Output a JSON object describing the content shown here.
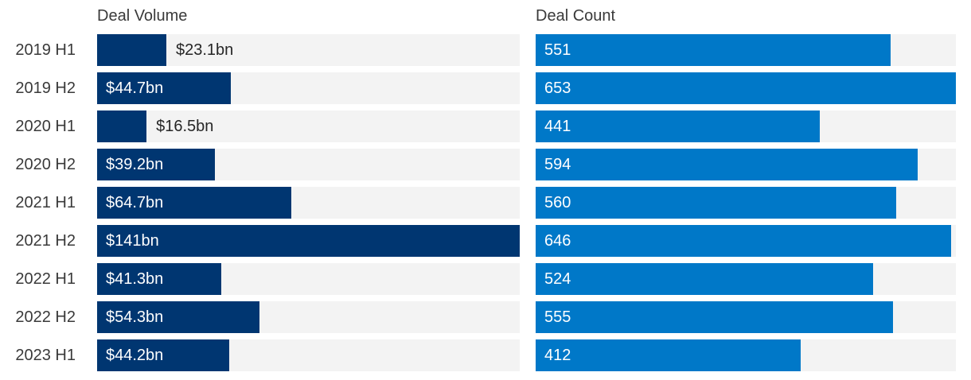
{
  "headers": {
    "volume": "Deal Volume",
    "count": "Deal Count"
  },
  "colors": {
    "volume_bar": "#003671",
    "count_bar": "#0078c8",
    "track": "#f3f3f3",
    "label_text": "#3a3a3a",
    "outside_value_text": "#262626"
  },
  "chart_data": {
    "type": "bar",
    "orientation": "horizontal",
    "grid": false,
    "legend_position": "none",
    "categories": [
      "2019 H1",
      "2019 H2",
      "2020 H1",
      "2020 H2",
      "2021 H1",
      "2021 H2",
      "2022 H1",
      "2022 H2",
      "2023 H1"
    ],
    "series": [
      {
        "name": "Deal Volume",
        "unit": "$bn",
        "max": 141,
        "color": "#003671",
        "values": [
          23.1,
          44.7,
          16.5,
          39.2,
          64.7,
          141,
          41.3,
          54.3,
          44.2
        ],
        "labels": [
          "$23.1bn",
          "$44.7bn",
          "$16.5bn",
          "$39.2bn",
          "$64.7bn",
          "$141bn",
          "$41.3bn",
          "$54.3bn",
          "$44.2bn"
        ]
      },
      {
        "name": "Deal Count",
        "unit": "deals",
        "max": 653,
        "color": "#0078c8",
        "values": [
          551,
          653,
          441,
          594,
          560,
          646,
          524,
          555,
          412
        ],
        "labels": [
          "551",
          "653",
          "441",
          "594",
          "560",
          "646",
          "524",
          "555",
          "412"
        ]
      }
    ]
  },
  "rows": [
    {
      "label": "2019 H1",
      "volume_value": 23.1,
      "volume_label": "$23.1bn",
      "volume_label_inside": false,
      "count_value": 551,
      "count_label": "551"
    },
    {
      "label": "2019 H2",
      "volume_value": 44.7,
      "volume_label": "$44.7bn",
      "volume_label_inside": true,
      "count_value": 653,
      "count_label": "653"
    },
    {
      "label": "2020 H1",
      "volume_value": 16.5,
      "volume_label": "$16.5bn",
      "volume_label_inside": false,
      "count_value": 441,
      "count_label": "441"
    },
    {
      "label": "2020 H2",
      "volume_value": 39.2,
      "volume_label": "$39.2bn",
      "volume_label_inside": true,
      "count_value": 594,
      "count_label": "594"
    },
    {
      "label": "2021 H1",
      "volume_value": 64.7,
      "volume_label": "$64.7bn",
      "volume_label_inside": true,
      "count_value": 560,
      "count_label": "560"
    },
    {
      "label": "2021 H2",
      "volume_value": 141,
      "volume_label": "$141bn",
      "volume_label_inside": true,
      "count_value": 646,
      "count_label": "646"
    },
    {
      "label": "2022 H1",
      "volume_value": 41.3,
      "volume_label": "$41.3bn",
      "volume_label_inside": true,
      "count_value": 524,
      "count_label": "524"
    },
    {
      "label": "2022 H2",
      "volume_value": 54.3,
      "volume_label": "$54.3bn",
      "volume_label_inside": true,
      "count_value": 555,
      "count_label": "555"
    },
    {
      "label": "2023 H1",
      "volume_value": 44.2,
      "volume_label": "$44.2bn",
      "volume_label_inside": true,
      "count_value": 412,
      "count_label": "412"
    }
  ]
}
